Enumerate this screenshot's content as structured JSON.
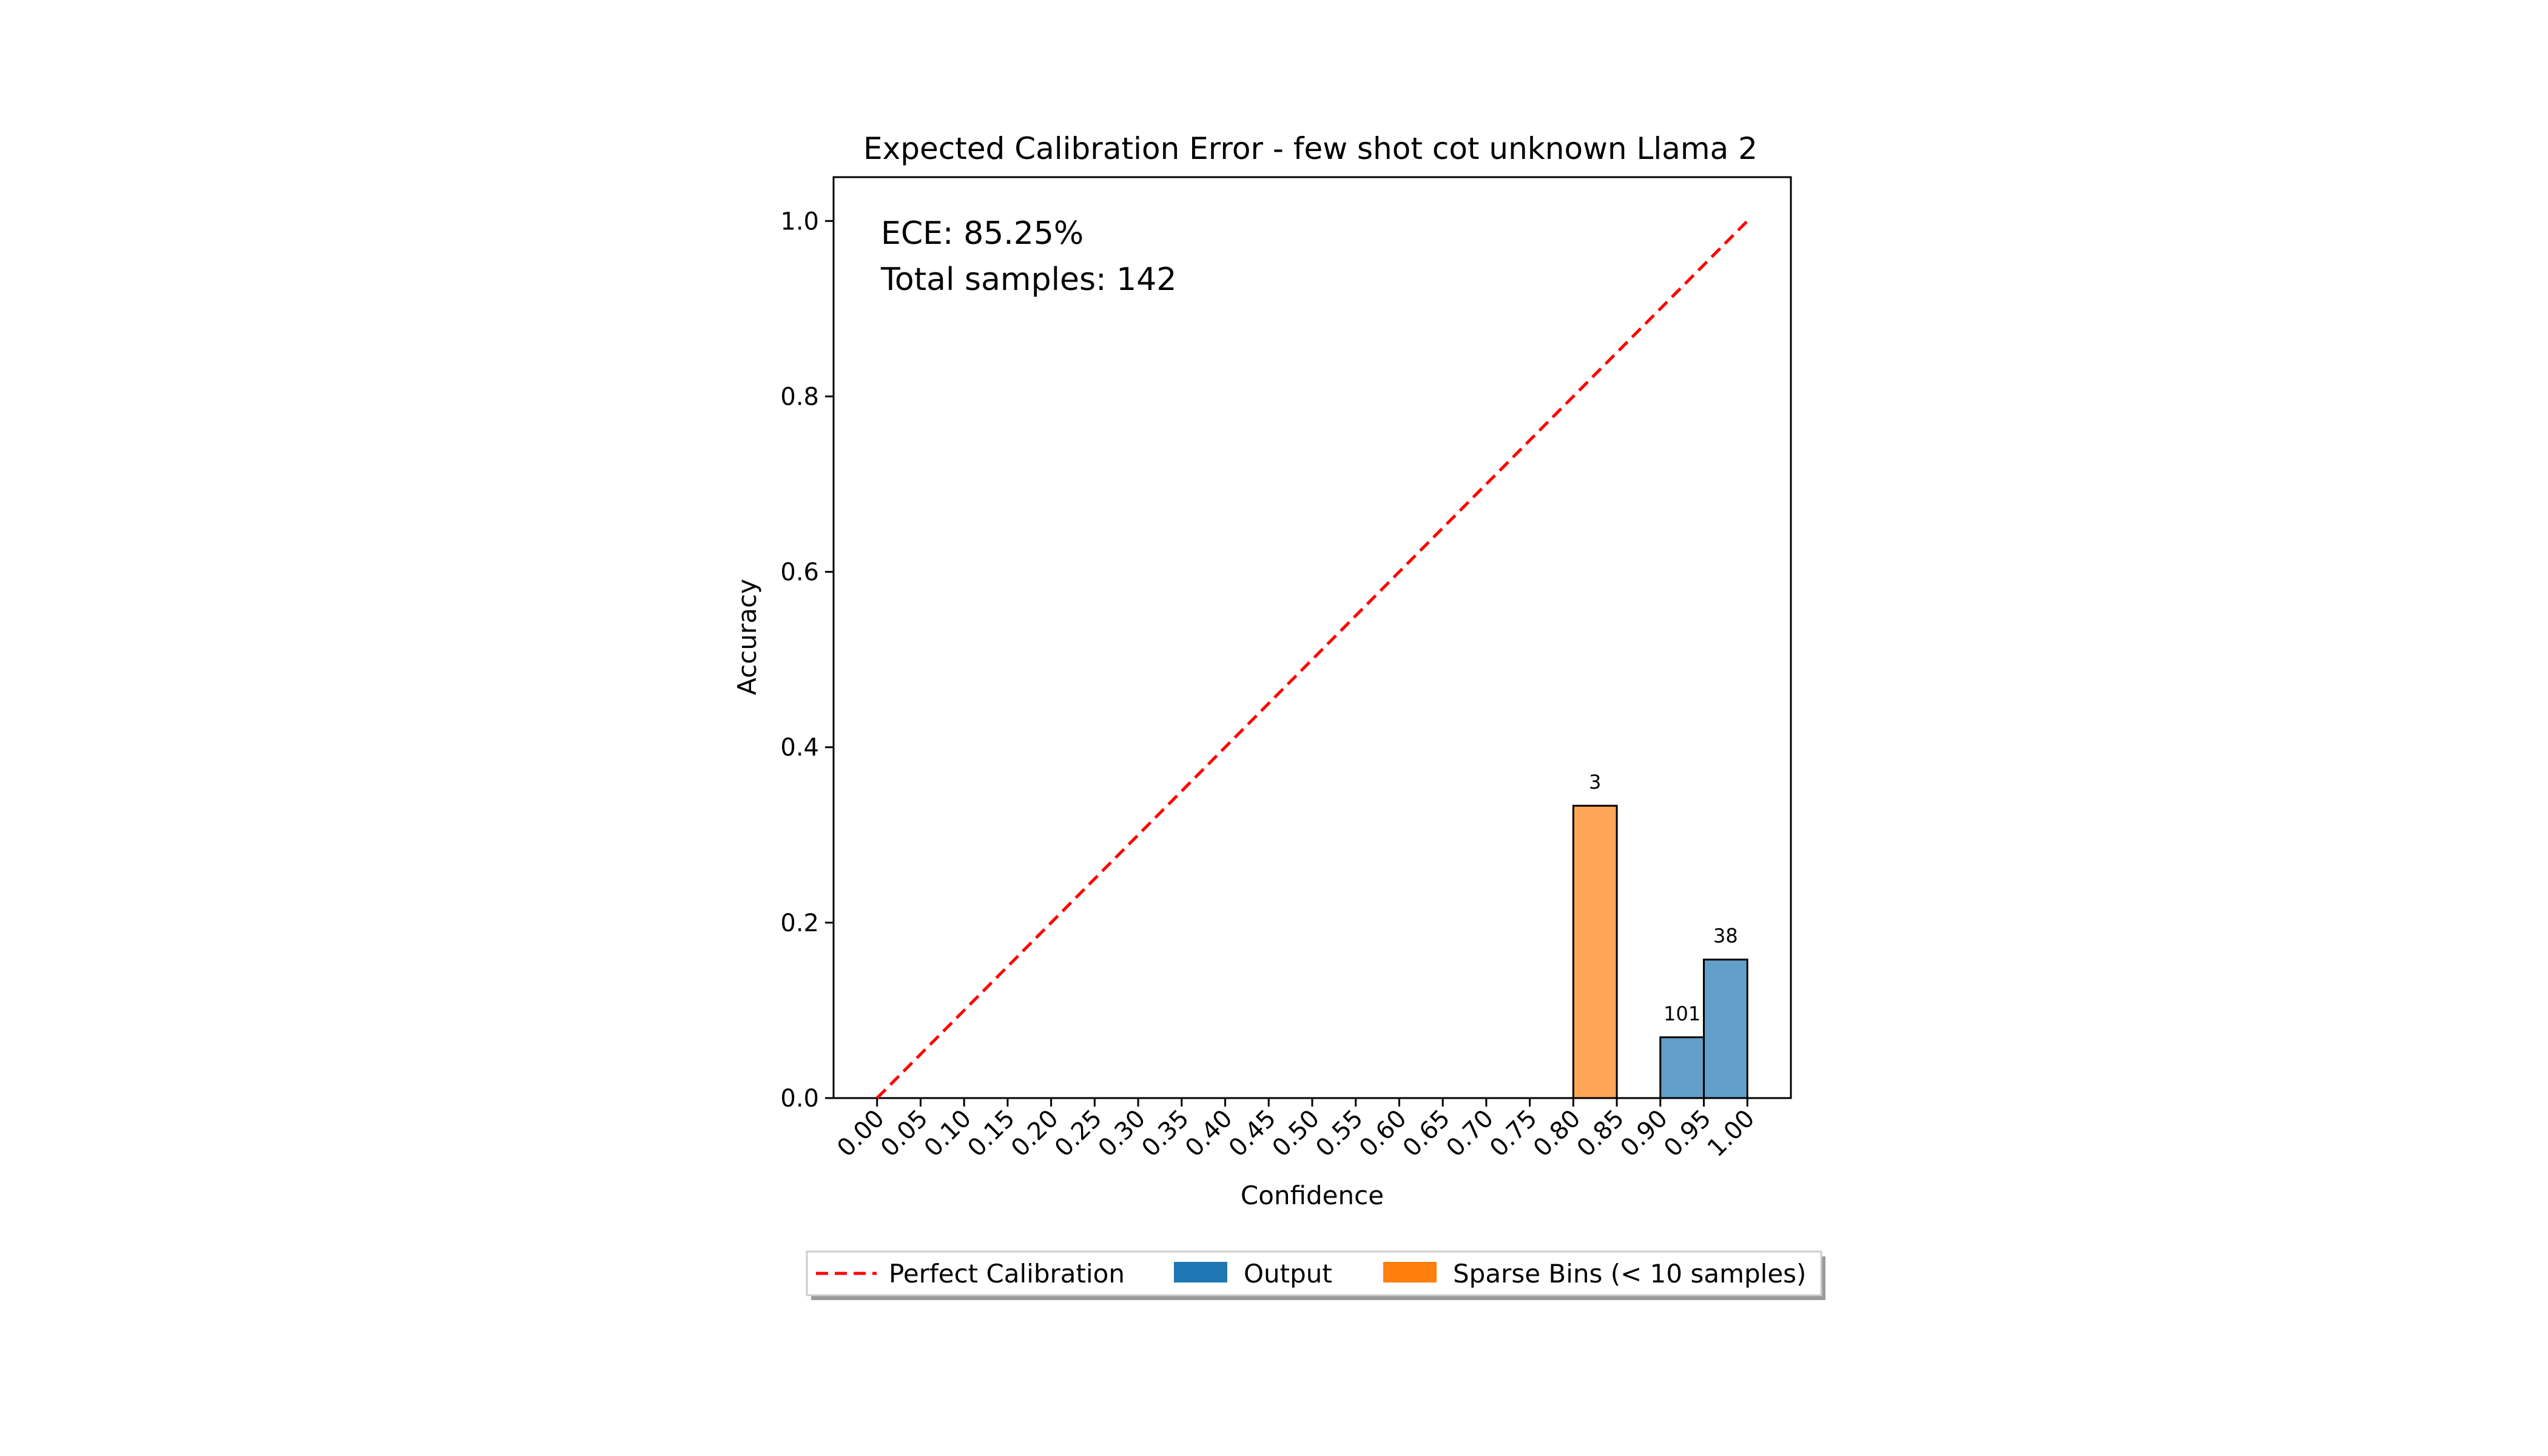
{
  "chart_data": {
    "type": "bar",
    "title": "Expected Calibration Error - few shot cot unknown Llama 2",
    "xlabel": "Confidence",
    "ylabel": "Accuracy",
    "xlim": [
      -0.05,
      1.05
    ],
    "ylim": [
      0.0,
      1.05
    ],
    "x_ticks": [
      "0.00",
      "0.05",
      "0.10",
      "0.15",
      "0.20",
      "0.25",
      "0.30",
      "0.35",
      "0.40",
      "0.45",
      "0.50",
      "0.55",
      "0.60",
      "0.65",
      "0.70",
      "0.75",
      "0.80",
      "0.85",
      "0.90",
      "0.95",
      "1.00"
    ],
    "y_ticks": [
      "0.0",
      "0.2",
      "0.4",
      "0.6",
      "0.8",
      "1.0"
    ],
    "grid": false,
    "bin_width": 0.05,
    "annotations": {
      "ece": "ECE: 85.25%",
      "total": "Total samples: 142"
    },
    "reference_line": {
      "name": "Perfect Calibration",
      "x": [
        0,
        1
      ],
      "y": [
        0,
        1
      ],
      "color": "#ff0000",
      "style": "dashed"
    },
    "series": [
      {
        "name": "Output",
        "color": "#1f77b4",
        "bars": [
          {
            "x_start": 0.9,
            "value": 0.0693,
            "count": "101"
          },
          {
            "x_start": 0.95,
            "value": 0.1579,
            "count": "38"
          }
        ]
      },
      {
        "name": "Sparse Bins (< 10 samples)",
        "color": "#ff7f0e",
        "bars": [
          {
            "x_start": 0.8,
            "value": 0.3333,
            "count": "3"
          }
        ]
      }
    ],
    "legend": {
      "placement": "bottom-center",
      "items": [
        "Perfect Calibration",
        "Output",
        "Sparse Bins (< 10 samples)"
      ]
    }
  }
}
